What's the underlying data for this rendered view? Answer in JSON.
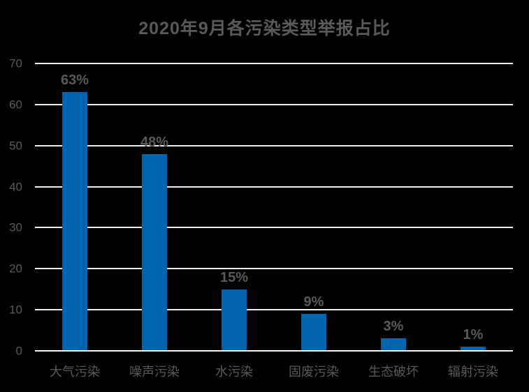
{
  "page": {
    "background": "#000000"
  },
  "chart_data": {
    "type": "bar",
    "title": "2020年9月各污染类型举报占比",
    "categories": [
      "大气污染",
      "噪声污染",
      "水污染",
      "固废污染",
      "生态破坏",
      "辐射污染"
    ],
    "values": [
      63,
      48,
      15,
      9,
      3,
      1
    ],
    "value_labels": [
      "63%",
      "48%",
      "15%",
      "9%",
      "3%",
      "1%"
    ],
    "xlabel": "",
    "ylabel": "",
    "ylim": [
      0,
      70
    ],
    "yticks": [
      0,
      10,
      20,
      30,
      40,
      50,
      60,
      70
    ],
    "grid": true,
    "legend": "none",
    "colors": {
      "bar": "#0064B0",
      "text": "#595959",
      "gridline": "#ECECEC",
      "axis_line": "#F5F5F5",
      "background": "#000000"
    }
  }
}
